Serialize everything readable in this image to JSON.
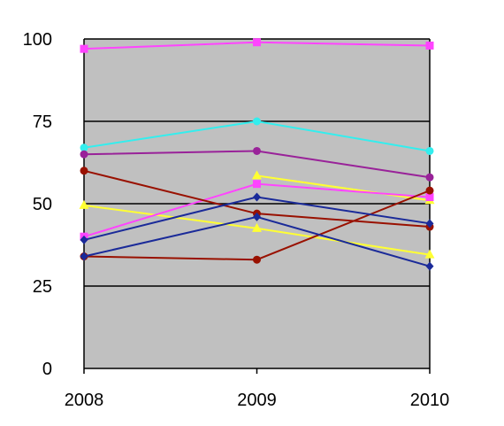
{
  "chart_data": {
    "type": "line",
    "categories": [
      "2008",
      "2009",
      "2010"
    ],
    "ylim": [
      0,
      100
    ],
    "yticks": [
      "0",
      "25",
      "50",
      "75",
      "100"
    ],
    "grid": true,
    "plot_background": "#c0c0c0",
    "legend": "none",
    "series": [
      {
        "color": "#ff44ff",
        "marker": "square",
        "values": [
          97,
          99,
          98
        ]
      },
      {
        "color": "#33eeee",
        "marker": "circle",
        "values": [
          67,
          75,
          66
        ]
      },
      {
        "color": "#992299",
        "marker": "circle",
        "values": [
          65,
          66,
          58
        ]
      },
      {
        "color": "#ffff33",
        "marker": "triangle",
        "values": [
          49.5,
          42.5,
          34.5
        ]
      },
      {
        "color": "#ffff33",
        "marker": "triangle",
        "values": [
          null,
          58.5,
          51
        ]
      },
      {
        "color": "#ff44ff",
        "marker": "square",
        "values": [
          40,
          56,
          52
        ]
      },
      {
        "color": "#991100",
        "marker": "circle",
        "values": [
          60,
          47,
          43
        ]
      },
      {
        "color": "#991100",
        "marker": "circle",
        "values": [
          34,
          33,
          54
        ]
      },
      {
        "color": "#1a2a99",
        "marker": "diamond",
        "values": [
          39,
          52,
          44
        ]
      },
      {
        "color": "#1a2a99",
        "marker": "diamond",
        "values": [
          34,
          46,
          31
        ]
      }
    ]
  }
}
